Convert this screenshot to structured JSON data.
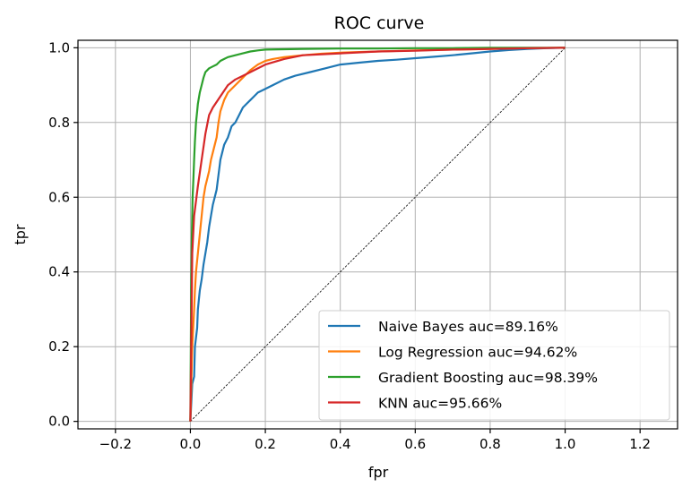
{
  "chart_data": {
    "type": "line",
    "title": "ROC curve",
    "xlabel": "fpr",
    "ylabel": "tpr",
    "xlim": [
      -0.3,
      1.3
    ],
    "ylim": [
      -0.02,
      1.02
    ],
    "xticks": [
      -0.2,
      0.0,
      0.2,
      0.4,
      0.6,
      0.8,
      1.0,
      1.2
    ],
    "xtick_labels": [
      "−0.2",
      "0.0",
      "0.2",
      "0.4",
      "0.6",
      "0.8",
      "1.0",
      "1.2"
    ],
    "yticks": [
      0.0,
      0.2,
      0.4,
      0.6,
      0.8,
      1.0
    ],
    "ytick_labels": [
      "0.0",
      "0.2",
      "0.4",
      "0.6",
      "0.8",
      "1.0"
    ],
    "grid": true,
    "legend_position": "lower-right",
    "diagonal": {
      "x": [
        0,
        1
      ],
      "y": [
        0,
        1
      ],
      "color": "#000000",
      "style": "dashed"
    },
    "series": [
      {
        "name": "Naive Bayes auc=89.16%",
        "color": "#1f77b4",
        "x": [
          0,
          0.005,
          0.01,
          0.012,
          0.018,
          0.02,
          0.025,
          0.03,
          0.035,
          0.04,
          0.045,
          0.05,
          0.055,
          0.06,
          0.065,
          0.07,
          0.075,
          0.08,
          0.085,
          0.09,
          0.1,
          0.11,
          0.12,
          0.13,
          0.14,
          0.15,
          0.16,
          0.17,
          0.18,
          0.2,
          0.22,
          0.25,
          0.28,
          0.32,
          0.36,
          0.4,
          0.45,
          0.5,
          0.55,
          0.6,
          0.65,
          0.7,
          0.75,
          0.8,
          0.85,
          0.9,
          0.95,
          1.0
        ],
        "y": [
          0,
          0.1,
          0.12,
          0.2,
          0.25,
          0.3,
          0.35,
          0.38,
          0.42,
          0.45,
          0.48,
          0.52,
          0.55,
          0.58,
          0.6,
          0.62,
          0.66,
          0.7,
          0.72,
          0.74,
          0.76,
          0.79,
          0.8,
          0.82,
          0.84,
          0.85,
          0.86,
          0.87,
          0.88,
          0.89,
          0.9,
          0.915,
          0.925,
          0.935,
          0.945,
          0.955,
          0.96,
          0.965,
          0.968,
          0.972,
          0.976,
          0.98,
          0.985,
          0.99,
          0.994,
          0.997,
          0.999,
          1.0
        ]
      },
      {
        "name": "Log Regression auc=94.62%",
        "color": "#ff7f0e",
        "x": [
          0,
          0.005,
          0.01,
          0.012,
          0.015,
          0.02,
          0.025,
          0.03,
          0.035,
          0.04,
          0.045,
          0.05,
          0.055,
          0.06,
          0.065,
          0.07,
          0.075,
          0.08,
          0.09,
          0.1,
          0.12,
          0.14,
          0.16,
          0.18,
          0.2,
          0.22,
          0.25,
          0.3,
          0.35,
          0.4,
          0.5,
          0.6,
          0.7,
          0.8,
          0.9,
          1.0
        ],
        "y": [
          0,
          0.2,
          0.3,
          0.35,
          0.4,
          0.45,
          0.5,
          0.55,
          0.6,
          0.63,
          0.65,
          0.67,
          0.7,
          0.72,
          0.74,
          0.76,
          0.8,
          0.83,
          0.86,
          0.88,
          0.9,
          0.92,
          0.94,
          0.955,
          0.965,
          0.97,
          0.975,
          0.98,
          0.984,
          0.987,
          0.99,
          0.993,
          0.995,
          0.997,
          0.999,
          1.0
        ]
      },
      {
        "name": "Gradient Boosting auc=98.39%",
        "color": "#2ca02c",
        "x": [
          0,
          0.002,
          0.004,
          0.006,
          0.008,
          0.01,
          0.012,
          0.015,
          0.018,
          0.02,
          0.025,
          0.03,
          0.035,
          0.04,
          0.05,
          0.06,
          0.07,
          0.08,
          0.09,
          0.1,
          0.12,
          0.14,
          0.16,
          0.18,
          0.2,
          0.25,
          0.3,
          0.4,
          0.5,
          0.6,
          0.7,
          0.8,
          0.9,
          1.0
        ],
        "y": [
          0,
          0.35,
          0.5,
          0.6,
          0.65,
          0.7,
          0.75,
          0.8,
          0.83,
          0.85,
          0.88,
          0.9,
          0.92,
          0.935,
          0.945,
          0.95,
          0.955,
          0.965,
          0.97,
          0.975,
          0.98,
          0.985,
          0.99,
          0.993,
          0.995,
          0.996,
          0.997,
          0.998,
          0.998,
          0.999,
          0.999,
          1.0,
          1.0,
          1.0
        ]
      },
      {
        "name": "KNN auc=95.66%",
        "color": "#d62728",
        "x": [
          0,
          0.005,
          0.01,
          0.02,
          0.03,
          0.04,
          0.05,
          0.06,
          0.08,
          0.1,
          0.12,
          0.15,
          0.2,
          0.25,
          0.3,
          0.4,
          0.5,
          0.6,
          0.7,
          0.8,
          0.9,
          1.0
        ],
        "y": [
          0,
          0.45,
          0.55,
          0.63,
          0.7,
          0.77,
          0.82,
          0.84,
          0.87,
          0.9,
          0.915,
          0.93,
          0.955,
          0.97,
          0.98,
          0.985,
          0.99,
          0.992,
          0.995,
          0.997,
          0.999,
          1.0
        ]
      }
    ]
  }
}
